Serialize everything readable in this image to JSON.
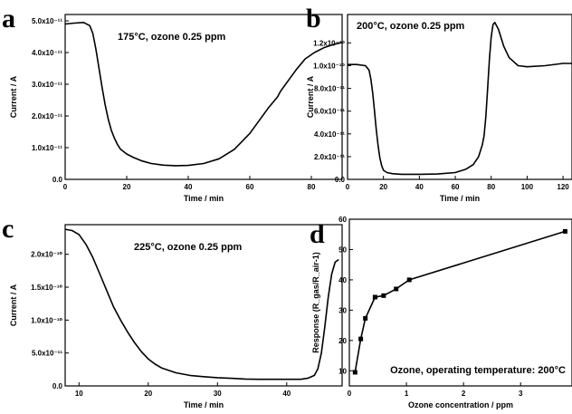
{
  "chart_data": [
    {
      "panel_letter": "a",
      "type": "line",
      "annotation": "175°C, ozone 0.25 ppm",
      "xlabel": "Time / min",
      "ylabel": "Current / A",
      "xlim": [
        0,
        90
      ],
      "ylim": [
        0,
        5.2e-11
      ],
      "x_ticks": [
        0,
        20,
        40,
        60,
        80
      ],
      "x_tick_labels": [
        "0",
        "20",
        "40",
        "60",
        "80"
      ],
      "y_ticks": [
        0,
        1e-11,
        2e-11,
        3e-11,
        4e-11,
        5e-11
      ],
      "y_tick_labels": [
        "0.0",
        "1.0x10⁻¹¹",
        "2.0x10⁻¹¹",
        "3.0x10⁻¹¹",
        "4.0x10⁻¹¹",
        "5.0x10⁻¹¹"
      ],
      "series": [
        {
          "x": [
            0,
            3,
            6,
            8,
            9,
            10,
            11,
            12,
            13,
            14,
            15,
            16,
            17,
            18,
            20,
            22,
            25,
            28,
            32,
            36,
            40,
            45,
            50,
            55,
            60,
            63,
            66,
            69,
            70,
            72,
            75,
            78,
            81,
            84,
            87,
            90
          ],
          "y": [
            4.9e-11,
            4.93e-11,
            4.95e-11,
            4.85e-11,
            4.6e-11,
            4.1e-11,
            3.5e-11,
            2.9e-11,
            2.35e-11,
            1.9e-11,
            1.55e-11,
            1.3e-11,
            1.1e-11,
            9.5e-12,
            8e-12,
            7e-12,
            5.8e-12,
            5e-12,
            4.5e-12,
            4.3e-12,
            4.4e-12,
            5e-12,
            6.5e-12,
            9.5e-12,
            1.45e-11,
            1.85e-11,
            2.25e-11,
            2.6e-11,
            2.78e-11,
            3.05e-11,
            3.45e-11,
            3.8e-11,
            4e-11,
            4.15e-11,
            4.25e-11,
            4.32e-11
          ]
        }
      ]
    },
    {
      "panel_letter": "b",
      "type": "line",
      "annotation": "200°C, ozone 0.25 ppm",
      "xlabel": "Time / min",
      "ylabel": "Current / A",
      "xlim": [
        0,
        125
      ],
      "ylim": [
        0,
        1.45e-10
      ],
      "x_ticks": [
        0,
        20,
        40,
        60,
        80,
        100,
        120
      ],
      "x_tick_labels": [
        "0",
        "20",
        "40",
        "60",
        "80",
        "100",
        "120"
      ],
      "y_ticks": [
        0,
        2e-11,
        4e-11,
        6e-11,
        8e-11,
        1e-10,
        1.2e-10
      ],
      "y_tick_labels": [
        "0.0",
        "2.0x10⁻¹¹",
        "4.0x10⁻¹¹",
        "6.0x10⁻¹¹",
        "8.0x10⁻¹¹",
        "1.0x10⁻¹⁰",
        "1.2x10⁻¹⁰"
      ],
      "series": [
        {
          "x": [
            0,
            5,
            10,
            12,
            13,
            14,
            15,
            16,
            17,
            18,
            19,
            20,
            22,
            25,
            30,
            40,
            50,
            60,
            66,
            70,
            73,
            75,
            76,
            77,
            78,
            79,
            80,
            81,
            82,
            84,
            87,
            90,
            95,
            100,
            110,
            120,
            125
          ],
          "y": [
            1.01e-10,
            1.01e-10,
            1e-10,
            9.6e-11,
            8.8e-11,
            7.6e-11,
            6e-11,
            4.4e-11,
            3e-11,
            1.9e-11,
            1.2e-11,
            8e-12,
            6e-12,
            5e-12,
            4.5e-12,
            4.5e-12,
            4.7e-12,
            6e-12,
            9e-12,
            1.3e-11,
            2e-11,
            3e-11,
            3.8e-11,
            5.5e-11,
            8e-11,
            1.05e-10,
            1.25e-10,
            1.36e-10,
            1.38e-10,
            1.32e-10,
            1.17e-10,
            1.07e-10,
            1e-10,
            9.9e-11,
            1e-10,
            1.02e-10,
            1.02e-10
          ]
        }
      ]
    },
    {
      "panel_letter": "c",
      "type": "line",
      "annotation": "225°C, ozone 0.25 ppm",
      "xlabel": "Time / min",
      "ylabel": "Current / A",
      "xlim": [
        8,
        48
      ],
      "ylim": [
        0,
        2.45e-10
      ],
      "x_ticks": [
        10,
        20,
        30,
        40
      ],
      "x_tick_labels": [
        "10",
        "20",
        "30",
        "40"
      ],
      "y_ticks": [
        0,
        5e-11,
        1e-10,
        1.5e-10,
        2e-10
      ],
      "y_tick_labels": [
        "0.0",
        "5.0x10⁻¹¹",
        "1.0x10⁻¹⁰",
        "1.5x10⁻¹⁰",
        "2.0x10⁻¹⁰"
      ],
      "series": [
        {
          "x": [
            8,
            9,
            10,
            11,
            12,
            13,
            14,
            15,
            16,
            17,
            18,
            19,
            20,
            21,
            22,
            24,
            26,
            28,
            30,
            32,
            34,
            36,
            38,
            40,
            42,
            43,
            44,
            44.5,
            45,
            45.5,
            46,
            46.5,
            47,
            47.5
          ],
          "y": [
            2.38e-10,
            2.36e-10,
            2.3e-10,
            2.15e-10,
            1.95e-10,
            1.7e-10,
            1.45e-10,
            1.2e-10,
            1e-10,
            8.2e-11,
            6.6e-11,
            5.2e-11,
            4.1e-11,
            3.3e-11,
            2.7e-11,
            2e-11,
            1.6e-11,
            1.4e-11,
            1.25e-11,
            1.15e-11,
            1.05e-11,
            1e-11,
            1e-11,
            1e-11,
            1e-11,
            1.15e-11,
            1.6e-11,
            2.6e-11,
            5e-11,
            9e-11,
            1.35e-10,
            1.7e-10,
            1.88e-10,
            1.92e-10
          ]
        }
      ]
    },
    {
      "panel_letter": "d",
      "type": "line",
      "annotation": "Ozone, operating temperature: 200°C",
      "xlabel": "Ozone concentration / ppm",
      "ylabel": "Response (R_gas/R_air-1)",
      "xlim": [
        0,
        3.9
      ],
      "ylim": [
        5,
        60
      ],
      "x_ticks": [
        0,
        1,
        2,
        3
      ],
      "x_tick_labels": [
        "0",
        "1",
        "2",
        "3"
      ],
      "y_ticks": [
        10,
        20,
        30,
        40,
        50,
        60
      ],
      "y_tick_labels": [
        "10",
        "20",
        "30",
        "40",
        "50",
        "60"
      ],
      "markers": true,
      "series": [
        {
          "x": [
            0.1,
            0.2,
            0.28,
            0.45,
            0.6,
            0.82,
            1.05,
            3.78
          ],
          "y": [
            9.5,
            20.5,
            27.3,
            34.3,
            34.8,
            37.0,
            40.0,
            56.0
          ]
        }
      ]
    }
  ]
}
